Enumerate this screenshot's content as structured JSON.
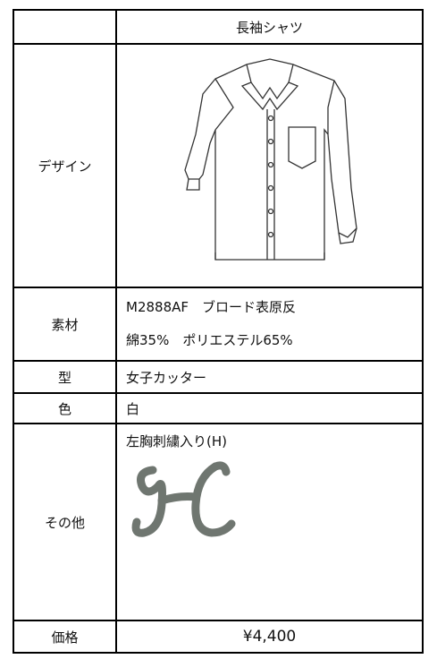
{
  "header": {
    "product": "長袖シャツ"
  },
  "rows": {
    "design": {
      "label": "デザイン"
    },
    "material": {
      "label": "素材",
      "lines": [
        "M2888AF　ブロード表原反",
        "綿35%　ポリエステル65%"
      ]
    },
    "type": {
      "label": "型",
      "value": "女子カッター"
    },
    "color": {
      "label": "色",
      "value": "白"
    },
    "other": {
      "label": "その他",
      "value": "左胸刺繍入り(H)"
    },
    "price": {
      "label": "価格",
      "value": "¥4,400"
    }
  }
}
